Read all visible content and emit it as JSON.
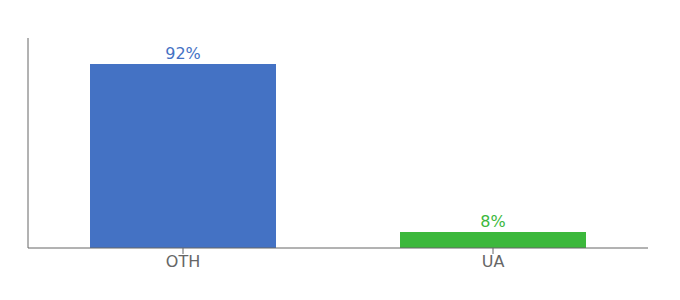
{
  "chart_data": {
    "type": "bar",
    "categories": [
      "OTH",
      "UA"
    ],
    "values": [
      92,
      8
    ],
    "value_labels": [
      "92%",
      "8%"
    ],
    "colors": [
      "#4472c4",
      "#3cb83c"
    ],
    "ylim": [
      0,
      105
    ],
    "data_labels": true,
    "tick_labels": "x"
  }
}
